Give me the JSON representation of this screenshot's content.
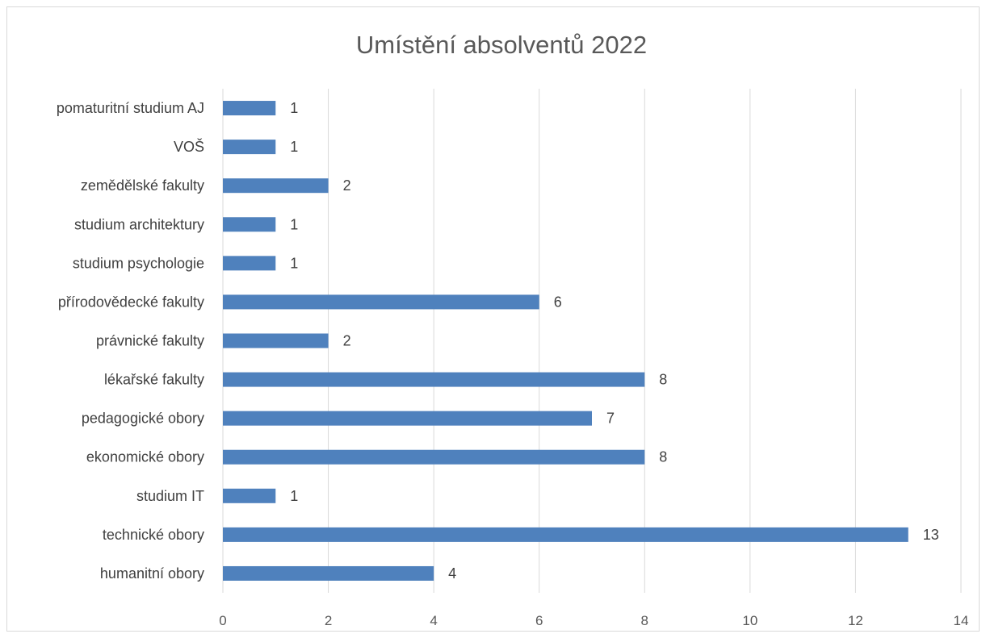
{
  "chart_data": {
    "type": "bar",
    "orientation": "horizontal",
    "title": "Umístění absolventů 2022",
    "xlabel": "",
    "ylabel": "",
    "categories": [
      "humanitní obory",
      "technické obory",
      "studium IT",
      "ekonomické obory",
      "pedagogické obory",
      "lékařské fakulty",
      "právnické fakulty",
      "přírodovědecké fakulty",
      "studium psychologie",
      "studium architektury",
      "zemědělské fakulty",
      "VOŠ",
      "pomaturitní studium AJ"
    ],
    "values": [
      4,
      13,
      1,
      8,
      7,
      8,
      2,
      6,
      1,
      1,
      2,
      1,
      1
    ],
    "xlim": [
      0,
      14
    ],
    "xticks": [
      0,
      2,
      4,
      6,
      8,
      10,
      12,
      14
    ],
    "grid": true,
    "data_labels": true,
    "legend": false,
    "colors": {
      "bar": "#4f81bd",
      "grid": "#d9d9d9",
      "text": "#404040",
      "title": "#595959"
    }
  }
}
